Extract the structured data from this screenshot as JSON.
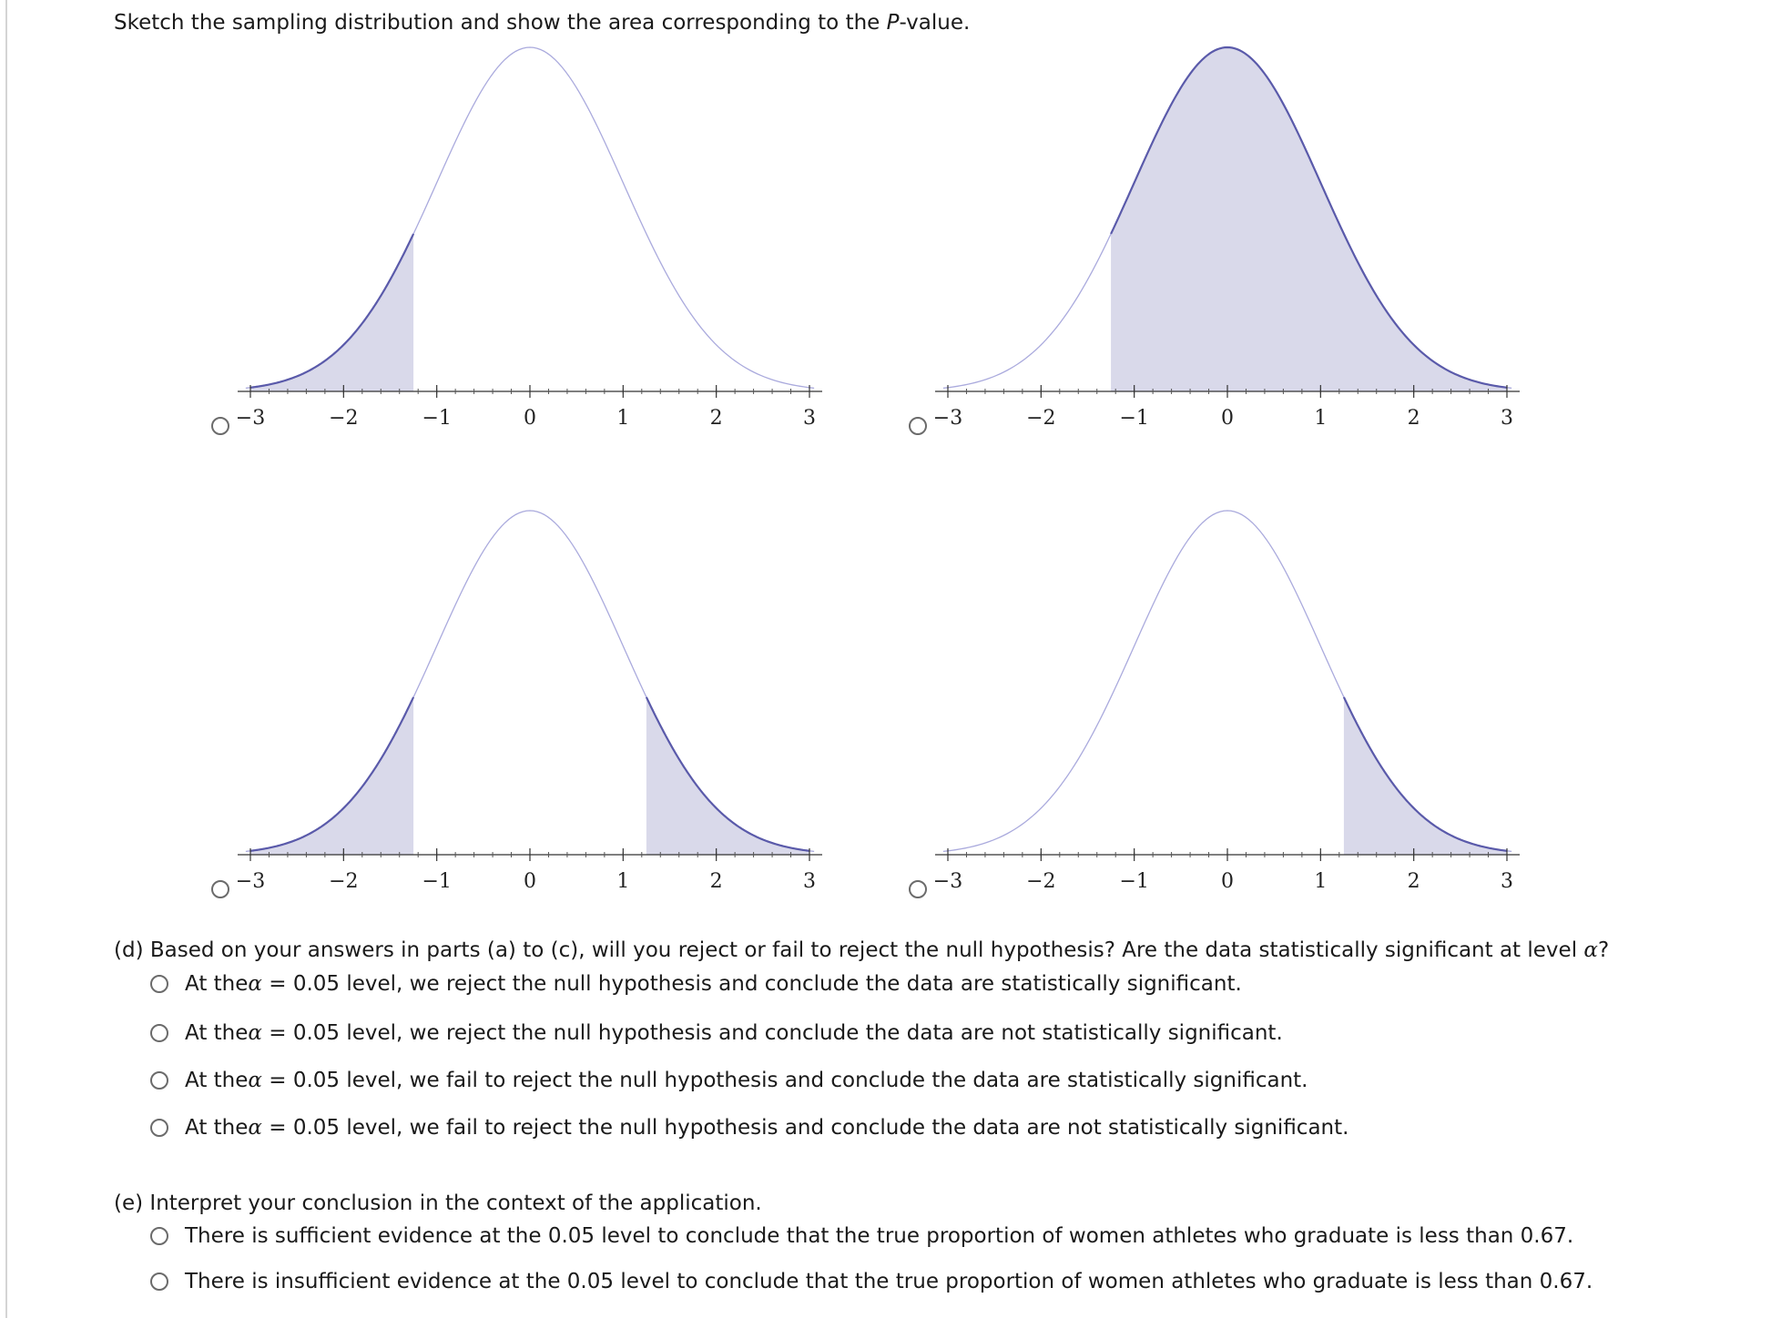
{
  "prompt": {
    "before": "Sketch the sampling distribution and show the area corresponding to the ",
    "p": "P",
    "after": "-value."
  },
  "chart_data": [
    {
      "type": "area",
      "x_ticks": [
        "−3",
        "−2",
        "−1",
        "0",
        "1",
        "2",
        "3"
      ],
      "xlim": [
        -3,
        3
      ],
      "shaded": [
        [
          -3,
          -1.25
        ]
      ]
    },
    {
      "type": "area",
      "x_ticks": [
        "−3",
        "−2",
        "−1",
        "0",
        "1",
        "2",
        "3"
      ],
      "xlim": [
        -3,
        3
      ],
      "shaded": [
        [
          -1.25,
          3
        ]
      ]
    },
    {
      "type": "area",
      "x_ticks": [
        "−3",
        "−2",
        "−1",
        "0",
        "1",
        "2",
        "3"
      ],
      "xlim": [
        -3,
        3
      ],
      "shaded": [
        [
          -3,
          -1.25
        ],
        [
          1.25,
          3
        ]
      ]
    },
    {
      "type": "area",
      "x_ticks": [
        "−3",
        "−2",
        "−1",
        "0",
        "1",
        "2",
        "3"
      ],
      "xlim": [
        -3,
        3
      ],
      "shaded": [
        [
          1.25,
          3
        ]
      ]
    }
  ],
  "colors": {
    "curve": "#aaaadd",
    "curve_shaded": "#5a5aaa",
    "fill": "#d9d9ea"
  },
  "part_d": {
    "question_before": "(d) Based on your answers in parts (a) to (c), will you reject or fail to reject the null hypothesis? Are the data statistically significant at level ",
    "alpha": "α",
    "question_after": "?",
    "options": [
      {
        "pre": "At the ",
        "alpha": "α",
        "post": " = 0.05 level, we reject the null hypothesis and conclude the data are statistically significant."
      },
      {
        "pre": "At the ",
        "alpha": "α",
        "post": " = 0.05 level, we reject the null hypothesis and conclude the data are not statistically significant."
      },
      {
        "pre": "At the ",
        "alpha": "α",
        "post": " = 0.05 level, we fail to reject the null hypothesis and conclude the data are statistically significant."
      },
      {
        "pre": "At the ",
        "alpha": "α",
        "post": " = 0.05 level, we fail to reject the null hypothesis and conclude the data are not statistically significant."
      }
    ]
  },
  "part_e": {
    "question": "(e) Interpret your conclusion in the context of the application.",
    "options": [
      "There is sufficient evidence at the 0.05 level to conclude that the true proportion of women athletes who graduate is less than 0.67.",
      "There is insufficient evidence at the 0.05 level to conclude that the true proportion of women athletes who graduate is less than 0.67."
    ]
  }
}
